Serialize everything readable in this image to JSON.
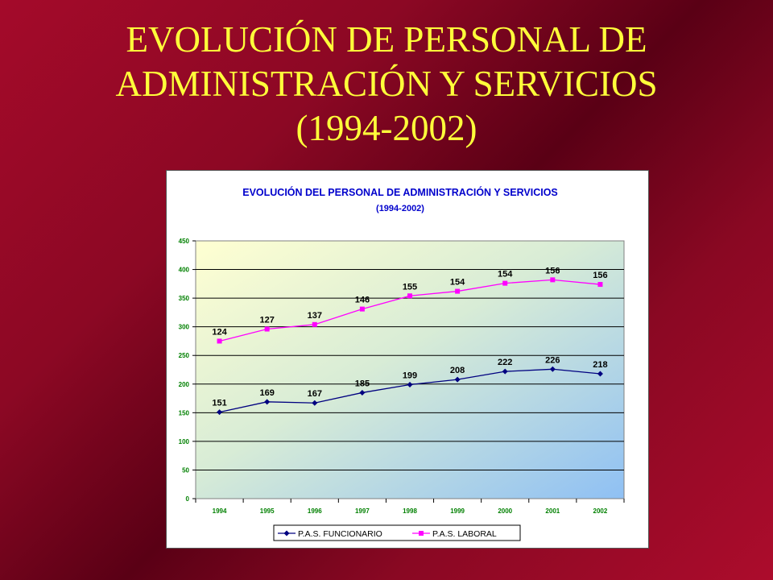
{
  "slide": {
    "title_lines": [
      "EVOLUCIÓN DE PERSONAL DE",
      "ADMINISTRACIÓN Y SERVICIOS",
      "(1994-2002)"
    ]
  },
  "colors": {
    "background": "#8c0824",
    "title": "#ffff3a",
    "chart_title": "#0000cc",
    "axis_ticks": "#008000",
    "series_funcionario": "#000080",
    "series_laboral": "#ff00ff"
  },
  "chart_data": {
    "type": "line",
    "title": "EVOLUCIÓN DEL PERSONAL DE ADMINISTRACIÓN Y SERVICIOS",
    "subtitle": "(1994-2002)",
    "xlabel": "",
    "ylabel": "",
    "categories": [
      "1994",
      "1995",
      "1996",
      "1997",
      "1998",
      "1999",
      "2000",
      "2001",
      "2002"
    ],
    "ylim": [
      0,
      450
    ],
    "yticks": [
      "0",
      "50",
      "100",
      "150",
      "200",
      "250",
      "300",
      "350",
      "400",
      "450"
    ],
    "grid": true,
    "legend_position": "bottom",
    "series": [
      {
        "name": "P.A.S. FUNCIONARIO",
        "marker": "diamond",
        "values": [
          151,
          169,
          167,
          185,
          199,
          208,
          222,
          226,
          218
        ],
        "labels": [
          "151",
          "169",
          "167",
          "185",
          "199",
          "208",
          "222",
          "226",
          "218"
        ]
      },
      {
        "name": "P.A.S. LABORAL",
        "marker": "square",
        "values": [
          275,
          296,
          304,
          331,
          354,
          362,
          376,
          382,
          374
        ],
        "labels": [
          "124",
          "127",
          "137",
          "146",
          "155",
          "154",
          "154",
          "156",
          "156"
        ]
      }
    ]
  }
}
